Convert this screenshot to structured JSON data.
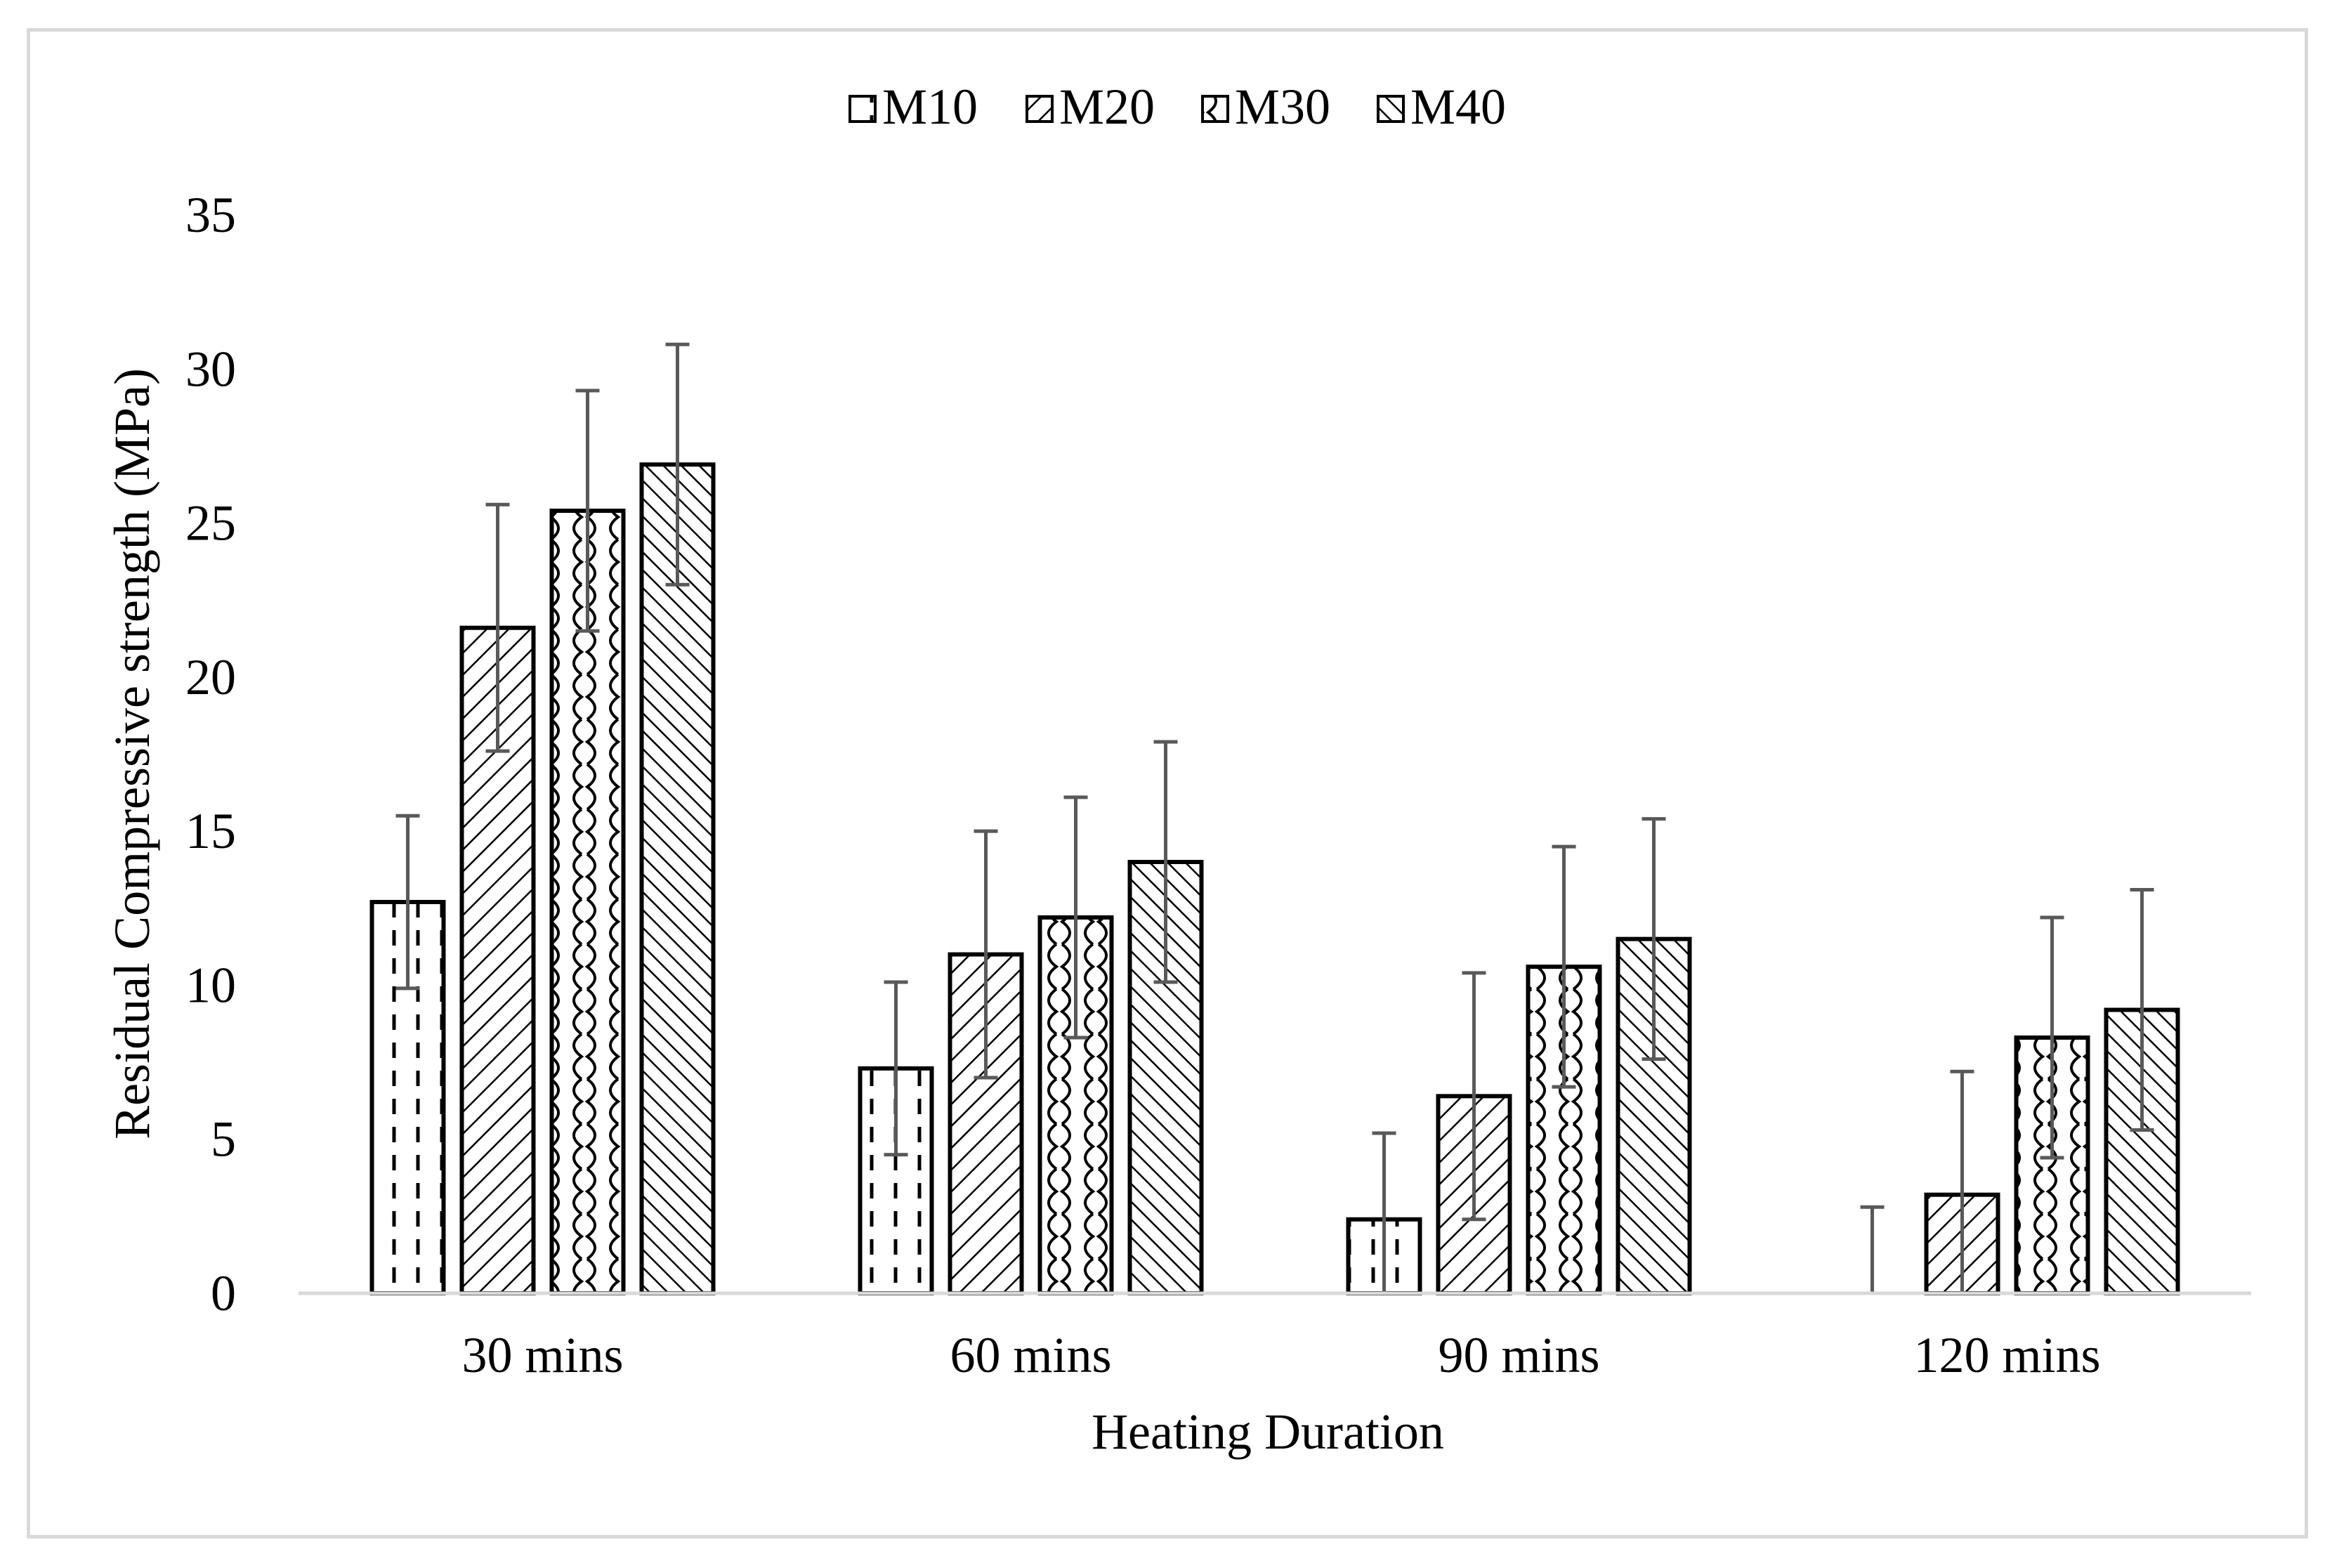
{
  "chart_data": {
    "type": "bar",
    "title": "",
    "xlabel": "Heating Duration",
    "ylabel": "Residual Compressive strength (MPa)",
    "ylim": [
      0,
      35
    ],
    "yticks": [
      0,
      5,
      10,
      15,
      20,
      25,
      30,
      35
    ],
    "grid": false,
    "legend_position": "top",
    "categories": [
      "30 mins",
      "60 mins",
      "90 mins",
      "120 mins"
    ],
    "series": [
      {
        "name": "M10",
        "pattern": "dashes",
        "values": [
          12.7,
          7.3,
          2.4,
          0.0
        ],
        "errors": [
          2.8,
          2.8,
          2.8,
          2.8
        ]
      },
      {
        "name": "M20",
        "pattern": "diagonal",
        "values": [
          21.6,
          11.0,
          6.4,
          3.2
        ],
        "errors": [
          4.0,
          4.0,
          4.0,
          4.0
        ]
      },
      {
        "name": "M30",
        "pattern": "waves",
        "values": [
          25.4,
          12.2,
          10.6,
          8.3
        ],
        "errors": [
          3.9,
          3.9,
          3.9,
          3.9
        ]
      },
      {
        "name": "M40",
        "pattern": "diagonal-back",
        "values": [
          26.9,
          14.0,
          11.5,
          9.2
        ],
        "errors": [
          3.9,
          3.9,
          3.9,
          3.9
        ]
      }
    ],
    "colors": {
      "bar_stroke": "#000000",
      "error_bar": "#595959",
      "axis_line": "#d9d9d9"
    }
  }
}
